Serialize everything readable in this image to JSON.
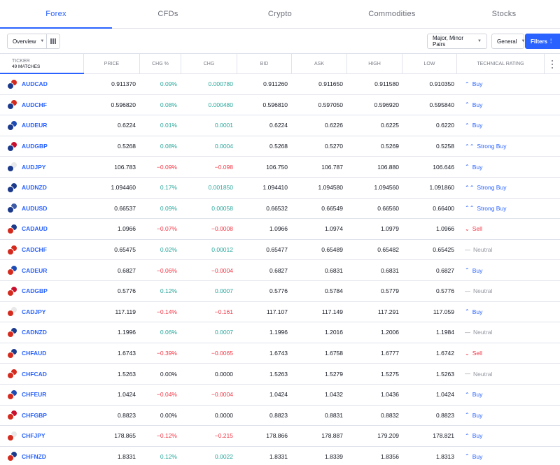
{
  "tabs": [
    {
      "label": "Forex",
      "active": true
    },
    {
      "label": "CFDs",
      "active": false
    },
    {
      "label": "Crypto",
      "active": false
    },
    {
      "label": "Commodities",
      "active": false
    },
    {
      "label": "Stocks",
      "active": false
    }
  ],
  "toolbar": {
    "overview_label": "Overview",
    "pairs_label": "Major, Minor Pairs",
    "general_label": "General",
    "filters_label": "Filters",
    "columns_icon": "columns-icon",
    "filter_icon": "filter-sliders-icon"
  },
  "header": {
    "ticker": "Ticker",
    "matches": "49 matches",
    "price": "Price",
    "chg_pct": "Chg %",
    "chg": "Chg",
    "bid": "Bid",
    "ask": "Ask",
    "high": "High",
    "low": "Low",
    "rating": "Technical Rating"
  },
  "colors": {
    "accent": "#2962ff",
    "positive": "#26a69a",
    "negative": "#f23645",
    "neutral": "#9598a1"
  },
  "rows": [
    {
      "symbol": "AUDCAD",
      "price": "0.911370",
      "chg_pct": "0.09%",
      "chg": "0.000780",
      "bid": "0.911260",
      "ask": "0.911650",
      "high": "0.911580",
      "low": "0.910350",
      "rating": "Buy",
      "dir": "pos",
      "flags": [
        "#1b3a8c",
        "#d52b1e"
      ]
    },
    {
      "symbol": "AUDCHF",
      "price": "0.596820",
      "chg_pct": "0.08%",
      "chg": "0.000480",
      "bid": "0.596810",
      "ask": "0.597050",
      "high": "0.596920",
      "low": "0.595840",
      "rating": "Buy",
      "dir": "pos",
      "flags": [
        "#1b3a8c",
        "#d52b1e"
      ]
    },
    {
      "symbol": "AUDEUR",
      "price": "0.6224",
      "chg_pct": "0.01%",
      "chg": "0.0001",
      "bid": "0.6224",
      "ask": "0.6226",
      "high": "0.6225",
      "low": "0.6220",
      "rating": "Buy",
      "dir": "pos",
      "flags": [
        "#1b3a8c",
        "#1e4bb3"
      ]
    },
    {
      "symbol": "AUDGBP",
      "price": "0.5268",
      "chg_pct": "0.08%",
      "chg": "0.0004",
      "bid": "0.5268",
      "ask": "0.5270",
      "high": "0.5269",
      "low": "0.5258",
      "rating": "Strong Buy",
      "dir": "pos",
      "flags": [
        "#1b3a8c",
        "#c8102e"
      ]
    },
    {
      "symbol": "AUDJPY",
      "price": "106.783",
      "chg_pct": "−0.09%",
      "chg": "−0.098",
      "bid": "106.750",
      "ask": "106.787",
      "high": "106.880",
      "low": "106.646",
      "rating": "Buy",
      "dir": "neg",
      "flags": [
        "#1b3a8c",
        "#e8e8e8"
      ]
    },
    {
      "symbol": "AUDNZD",
      "price": "1.094460",
      "chg_pct": "0.17%",
      "chg": "0.001850",
      "bid": "1.094410",
      "ask": "1.094580",
      "high": "1.094560",
      "low": "1.091860",
      "rating": "Strong Buy",
      "dir": "pos",
      "flags": [
        "#1b3a8c",
        "#1b3a8c"
      ]
    },
    {
      "symbol": "AUDUSD",
      "price": "0.66537",
      "chg_pct": "0.09%",
      "chg": "0.00058",
      "bid": "0.66532",
      "ask": "0.66549",
      "high": "0.66560",
      "low": "0.66400",
      "rating": "Strong Buy",
      "dir": "pos",
      "flags": [
        "#1b3a8c",
        "#3c5aa6"
      ]
    },
    {
      "symbol": "CADAUD",
      "price": "1.0966",
      "chg_pct": "−0.07%",
      "chg": "−0.0008",
      "bid": "1.0966",
      "ask": "1.0974",
      "high": "1.0979",
      "low": "1.0966",
      "rating": "Sell",
      "dir": "neg",
      "flags": [
        "#d52b1e",
        "#1b3a8c"
      ]
    },
    {
      "symbol": "CADCHF",
      "price": "0.65475",
      "chg_pct": "0.02%",
      "chg": "0.00012",
      "bid": "0.65477",
      "ask": "0.65489",
      "high": "0.65482",
      "low": "0.65425",
      "rating": "Neutral",
      "dir": "pos",
      "flags": [
        "#d52b1e",
        "#d52b1e"
      ]
    },
    {
      "symbol": "CADEUR",
      "price": "0.6827",
      "chg_pct": "−0.06%",
      "chg": "−0.0004",
      "bid": "0.6827",
      "ask": "0.6831",
      "high": "0.6831",
      "low": "0.6827",
      "rating": "Buy",
      "dir": "neg",
      "flags": [
        "#d52b1e",
        "#1e4bb3"
      ]
    },
    {
      "symbol": "CADGBP",
      "price": "0.5776",
      "chg_pct": "0.12%",
      "chg": "0.0007",
      "bid": "0.5776",
      "ask": "0.5784",
      "high": "0.5779",
      "low": "0.5776",
      "rating": "Neutral",
      "dir": "pos",
      "flags": [
        "#d52b1e",
        "#c8102e"
      ]
    },
    {
      "symbol": "CADJPY",
      "price": "117.119",
      "chg_pct": "−0.14%",
      "chg": "−0.161",
      "bid": "117.107",
      "ask": "117.149",
      "high": "117.291",
      "low": "117.059",
      "rating": "Buy",
      "dir": "neg",
      "flags": [
        "#d52b1e",
        "#e8e8e8"
      ]
    },
    {
      "symbol": "CADNZD",
      "price": "1.1996",
      "chg_pct": "0.06%",
      "chg": "0.0007",
      "bid": "1.1996",
      "ask": "1.2016",
      "high": "1.2006",
      "low": "1.1984",
      "rating": "Neutral",
      "dir": "pos",
      "flags": [
        "#d52b1e",
        "#1b3a8c"
      ]
    },
    {
      "symbol": "CHFAUD",
      "price": "1.6743",
      "chg_pct": "−0.39%",
      "chg": "−0.0065",
      "bid": "1.6743",
      "ask": "1.6758",
      "high": "1.6777",
      "low": "1.6742",
      "rating": "Sell",
      "dir": "neg",
      "flags": [
        "#d52b1e",
        "#1b3a8c"
      ]
    },
    {
      "symbol": "CHFCAD",
      "price": "1.5263",
      "chg_pct": "0.00%",
      "chg": "0.0000",
      "bid": "1.5263",
      "ask": "1.5279",
      "high": "1.5275",
      "low": "1.5263",
      "rating": "Neutral",
      "dir": "zero",
      "flags": [
        "#d52b1e",
        "#d52b1e"
      ]
    },
    {
      "symbol": "CHFEUR",
      "price": "1.0424",
      "chg_pct": "−0.04%",
      "chg": "−0.0004",
      "bid": "1.0424",
      "ask": "1.0432",
      "high": "1.0436",
      "low": "1.0424",
      "rating": "Buy",
      "dir": "neg",
      "flags": [
        "#d52b1e",
        "#1e4bb3"
      ]
    },
    {
      "symbol": "CHFGBP",
      "price": "0.8823",
      "chg_pct": "0.00%",
      "chg": "0.0000",
      "bid": "0.8823",
      "ask": "0.8831",
      "high": "0.8832",
      "low": "0.8823",
      "rating": "Buy",
      "dir": "zero",
      "flags": [
        "#d52b1e",
        "#c8102e"
      ]
    },
    {
      "symbol": "CHFJPY",
      "price": "178.865",
      "chg_pct": "−0.12%",
      "chg": "−0.215",
      "bid": "178.866",
      "ask": "178.887",
      "high": "179.209",
      "low": "178.821",
      "rating": "Buy",
      "dir": "neg",
      "flags": [
        "#d52b1e",
        "#e8e8e8"
      ]
    },
    {
      "symbol": "CHFNZD",
      "price": "1.8331",
      "chg_pct": "0.12%",
      "chg": "0.0022",
      "bid": "1.8331",
      "ask": "1.8339",
      "high": "1.8356",
      "low": "1.8313",
      "rating": "Buy",
      "dir": "pos",
      "flags": [
        "#d52b1e",
        "#1b3a8c"
      ]
    }
  ]
}
